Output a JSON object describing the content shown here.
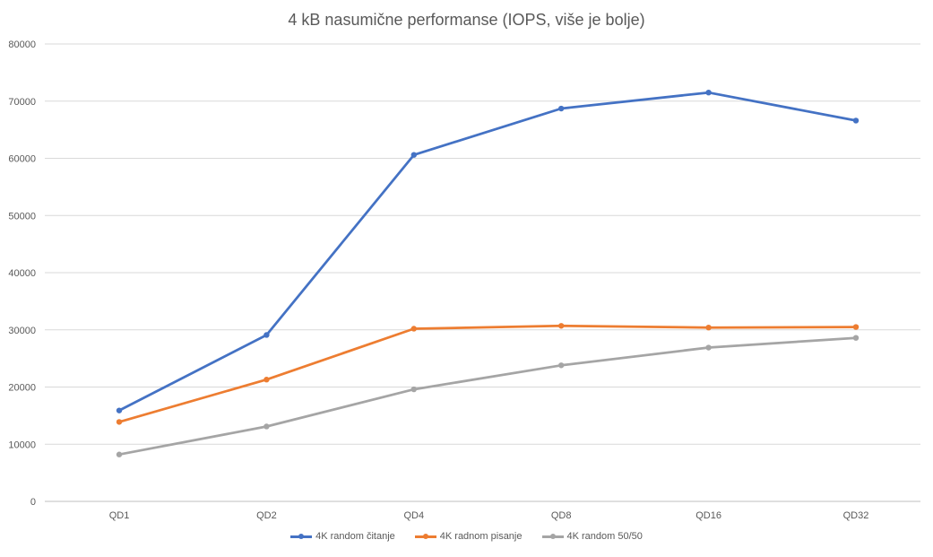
{
  "chart_data": {
    "type": "line",
    "title": "4 kB nasumične performanse (IOPS, više je bolje)",
    "xlabel": "",
    "ylabel": "",
    "categories": [
      "QD1",
      "QD2",
      "QD4",
      "QD8",
      "QD16",
      "QD32"
    ],
    "ylim": [
      0,
      80000
    ],
    "yticks": [
      0,
      10000,
      20000,
      30000,
      40000,
      50000,
      60000,
      70000,
      80000
    ],
    "grid": true,
    "legend_position": "bottom",
    "series": [
      {
        "name": "4K random čitanje",
        "color": "#4472C4",
        "values": [
          15900,
          29100,
          60600,
          68700,
          71500,
          66600
        ]
      },
      {
        "name": "4K radnom pisanje",
        "color": "#ED7D31",
        "values": [
          13900,
          21300,
          30200,
          30700,
          30400,
          30500
        ]
      },
      {
        "name": "4K random 50/50",
        "color": "#A5A5A5",
        "values": [
          8200,
          13100,
          19600,
          23800,
          26900,
          28600
        ]
      }
    ]
  }
}
